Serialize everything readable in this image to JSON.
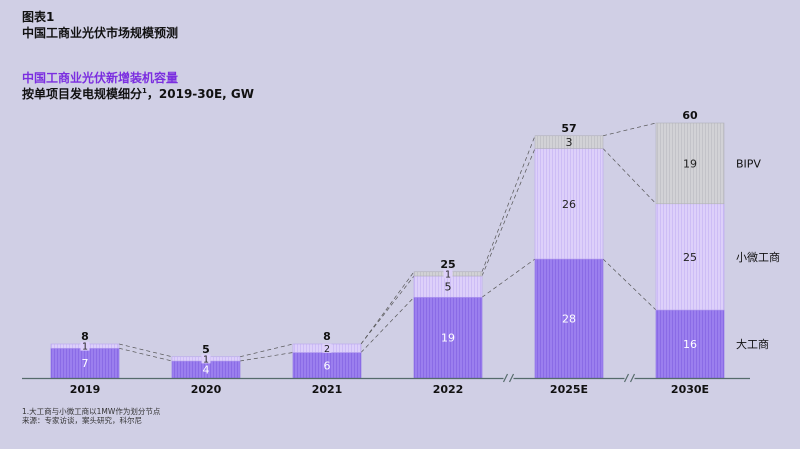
{
  "figure_label": "图表1",
  "figure_title": "中国工商业光伏市场规模预测",
  "chart_data": {
    "type": "bar",
    "stacked": true,
    "title": "中国工商业光伏新增装机容量",
    "subtitle": "按单项目发电规模细分",
    "subtitle_sup": "1",
    "subtitle_suffix": "，2019-30E, GW",
    "categories": [
      "2019",
      "2020",
      "2021",
      "2022",
      "2025E",
      "2030E"
    ],
    "axis_breaks": [
      "2022|2025E",
      "2025E|2030E"
    ],
    "series": [
      {
        "name": "大工商",
        "values": [
          7,
          4,
          6,
          19,
          28,
          16
        ],
        "color": "#9b7fee"
      },
      {
        "name": "小微工商",
        "values": [
          1,
          1,
          2,
          5,
          26,
          25
        ],
        "color": "#ddd0fa"
      },
      {
        "name": "BIPV",
        "values": [
          0,
          0,
          0,
          1,
          3,
          19
        ],
        "color": "#d2d2d6"
      }
    ],
    "totals": [
      8,
      5,
      8,
      25,
      57,
      60
    ],
    "legend_placement": "right"
  },
  "footnote": "1.大工商与小微工商以1MW作为划分节点",
  "source": "来源：专家访谈，案头研究，科尔尼"
}
